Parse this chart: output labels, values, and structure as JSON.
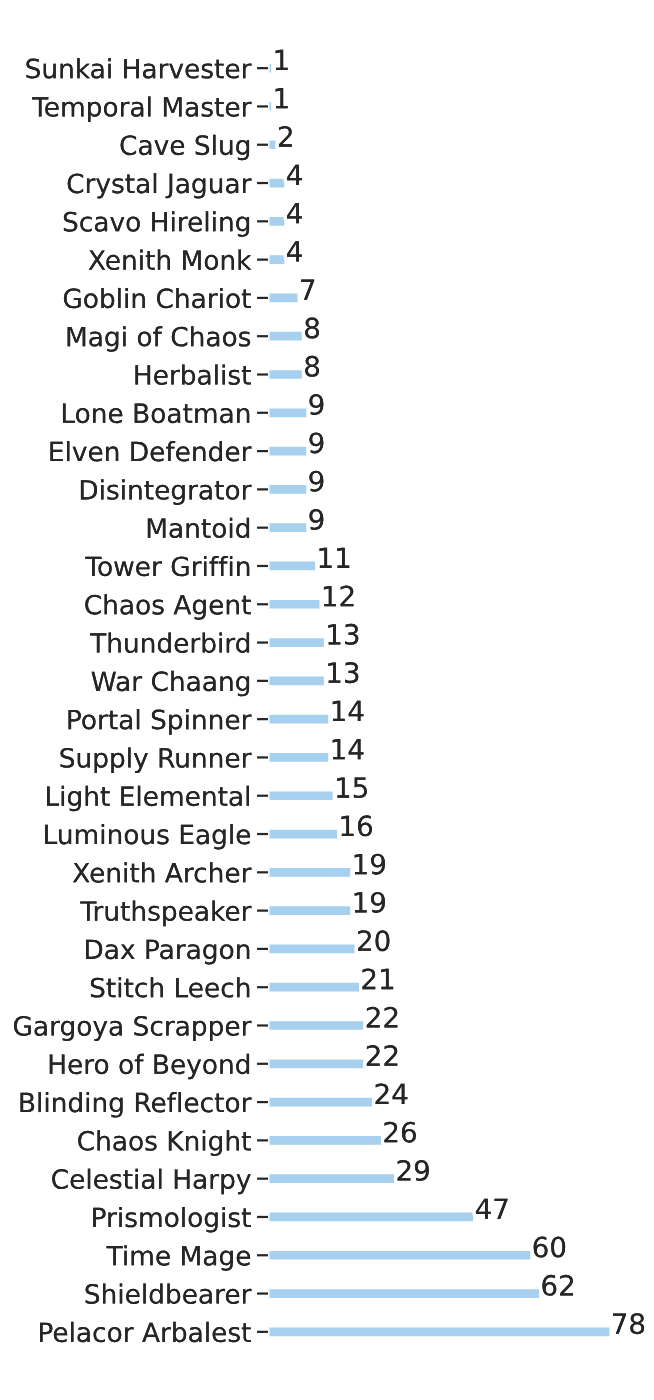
{
  "chart_data": {
    "type": "bar",
    "orientation": "horizontal",
    "categories": [
      "Sunkai Harvester",
      "Temporal Master",
      "Cave Slug",
      "Crystal Jaguar",
      "Scavo Hireling",
      "Xenith Monk",
      "Goblin Chariot",
      "Magi of Chaos",
      "Herbalist",
      "Lone Boatman",
      "Elven Defender",
      "Disintegrator",
      "Mantoid",
      "Tower Griffin",
      "Chaos Agent",
      "Thunderbird",
      "War Chaang",
      "Portal Spinner",
      "Supply Runner",
      "Light Elemental",
      "Luminous Eagle",
      "Xenith Archer",
      "Truthspeaker",
      "Dax Paragon",
      "Stitch Leech",
      "Gargoya Scrapper",
      "Hero of Beyond",
      "Blinding Reflector",
      "Chaos Knight",
      "Celestial Harpy",
      "Prismologist",
      "Time Mage",
      "Shieldbearer",
      "Pelacor Arbalest"
    ],
    "values": [
      1,
      1,
      2,
      4,
      4,
      4,
      7,
      8,
      8,
      9,
      9,
      9,
      9,
      11,
      12,
      13,
      13,
      14,
      14,
      15,
      16,
      19,
      19,
      20,
      21,
      22,
      22,
      24,
      26,
      29,
      47,
      60,
      62,
      78
    ],
    "color": "#a6d0ed",
    "data_labels": true,
    "grid": false,
    "legend": false
  }
}
